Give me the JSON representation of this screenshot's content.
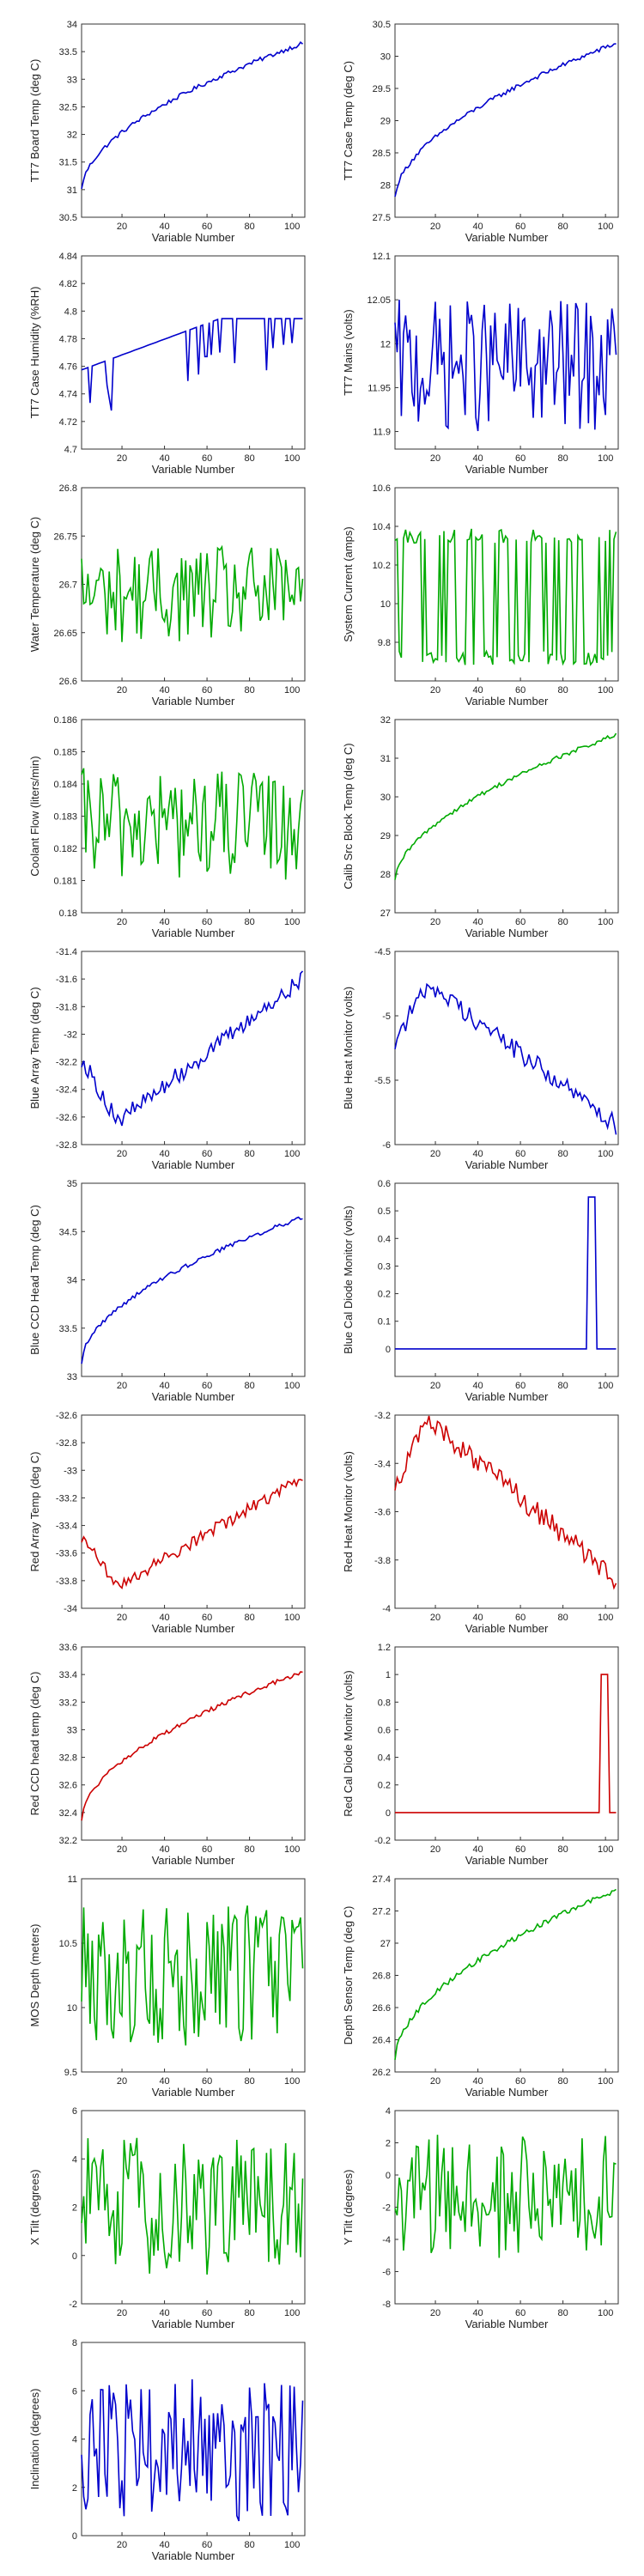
{
  "chart_data": [
    {
      "type": "line",
      "ylabel": "TT7 Board Temp (deg C)",
      "xlabel": "Variable Number",
      "ylim": [
        30.5,
        34
      ],
      "yticks": [
        30.5,
        31,
        31.5,
        32,
        32.5,
        33,
        33.5,
        34
      ],
      "xlim": [
        1,
        106
      ],
      "xticks": [
        20,
        40,
        60,
        80,
        100
      ],
      "color": "#0000cc",
      "shape": "rise",
      "range": [
        31.0,
        33.65
      ]
    },
    {
      "type": "line",
      "ylabel": "TT7 Case Temp (deg C)",
      "xlabel": "Variable Number",
      "ylim": [
        27.5,
        30.5
      ],
      "yticks": [
        27.5,
        28,
        28.5,
        29,
        29.5,
        30,
        30.5
      ],
      "xlim": [
        1,
        106
      ],
      "xticks": [
        20,
        40,
        60,
        80,
        100
      ],
      "color": "#0000cc",
      "shape": "rise",
      "range": [
        27.8,
        30.2
      ]
    },
    {
      "type": "line",
      "ylabel": "TT7 Case Humidity (%RH)",
      "xlabel": "Variable Number",
      "ylim": [
        4.7,
        4.84
      ],
      "yticks": [
        4.7,
        4.72,
        4.74,
        4.76,
        4.78,
        4.8,
        4.82,
        4.84
      ],
      "xlim": [
        1,
        106
      ],
      "xticks": [
        20,
        40,
        60,
        80,
        100
      ],
      "color": "#0000cc",
      "shape": "steps",
      "range": [
        4.745,
        4.8
      ]
    },
    {
      "type": "line",
      "ylabel": "TT7 Mains (volts)",
      "xlabel": "Variable Number",
      "ylim": [
        11.88,
        12.1
      ],
      "yticks": [
        11.9,
        11.95,
        12,
        12.05,
        12.1
      ],
      "xlim": [
        1,
        106
      ],
      "xticks": [
        20,
        40,
        60,
        80,
        100
      ],
      "color": "#0000cc",
      "shape": "noise",
      "range": [
        11.9,
        12.05
      ]
    },
    {
      "type": "line",
      "ylabel": "Water Temperature (deg C)",
      "xlabel": "Variable Number",
      "ylim": [
        26.6,
        26.8
      ],
      "yticks": [
        26.6,
        26.65,
        26.7,
        26.75,
        26.8
      ],
      "xlim": [
        1,
        106
      ],
      "xticks": [
        20,
        40,
        60,
        80,
        100
      ],
      "color": "#00aa00",
      "shape": "noise",
      "range": [
        26.64,
        26.74
      ]
    },
    {
      "type": "line",
      "ylabel": "System Current (amps)",
      "xlabel": "Variable Number",
      "ylim": [
        9.6,
        10.6
      ],
      "yticks": [
        9.8,
        10,
        10.2,
        10.4,
        10.6
      ],
      "xlim": [
        1,
        106
      ],
      "xticks": [
        20,
        40,
        60,
        80,
        100
      ],
      "color": "#00aa00",
      "shape": "square",
      "range": [
        9.72,
        10.35
      ]
    },
    {
      "type": "line",
      "ylabel": "Coolant Flow (liters/min)",
      "xlabel": "Variable Number",
      "ylim": [
        0.18,
        0.186
      ],
      "yticks": [
        0.18,
        0.181,
        0.182,
        0.183,
        0.184,
        0.185,
        0.186
      ],
      "xlim": [
        1,
        106
      ],
      "xticks": [
        20,
        40,
        60,
        80,
        100
      ],
      "color": "#00aa00",
      "shape": "noise",
      "range": [
        0.181,
        0.1845
      ]
    },
    {
      "type": "line",
      "ylabel": "Calib Src Block Temp (deg C)",
      "xlabel": "Variable Number",
      "ylim": [
        27,
        32
      ],
      "yticks": [
        27,
        28,
        29,
        30,
        31,
        32
      ],
      "xlim": [
        1,
        106
      ],
      "xticks": [
        20,
        40,
        60,
        80,
        100
      ],
      "color": "#00aa00",
      "shape": "rise",
      "range": [
        27.8,
        31.6
      ]
    },
    {
      "type": "line",
      "ylabel": "Blue Array Temp (deg C)",
      "xlabel": "Variable Number",
      "ylim": [
        -32.8,
        -31.4
      ],
      "yticks": [
        -32.8,
        -32.6,
        -32.4,
        -32.2,
        -32,
        -31.8,
        -31.6,
        -31.4
      ],
      "xlim": [
        1,
        106
      ],
      "xticks": [
        20,
        40,
        60,
        80,
        100
      ],
      "color": "#0000cc",
      "shape": "dipRise",
      "range": [
        -32.65,
        -31.6
      ]
    },
    {
      "type": "line",
      "ylabel": "Blue Heat Monitor (volts)",
      "xlabel": "Variable Number",
      "ylim": [
        -6,
        -4.5
      ],
      "yticks": [
        -6,
        -5.5,
        -5,
        -4.5
      ],
      "xlim": [
        1,
        106
      ],
      "xticks": [
        20,
        40,
        60,
        80,
        100
      ],
      "color": "#0000cc",
      "shape": "humpFall",
      "range": [
        -5.85,
        -4.75
      ]
    },
    {
      "type": "line",
      "ylabel": "Blue CCD Head Temp (deg C)",
      "xlabel": "Variable Number",
      "ylim": [
        33,
        35
      ],
      "yticks": [
        33,
        33.5,
        34,
        34.5,
        35
      ],
      "xlim": [
        1,
        106
      ],
      "xticks": [
        20,
        40,
        60,
        80,
        100
      ],
      "color": "#0000cc",
      "shape": "rise",
      "range": [
        33.15,
        34.65
      ]
    },
    {
      "type": "line",
      "ylabel": "Blue Cal Diode Monitor (volts)",
      "xlabel": "Variable Number",
      "ylim": [
        -0.1,
        0.6
      ],
      "yticks": [
        0,
        0.1,
        0.2,
        0.3,
        0.4,
        0.5,
        0.6
      ],
      "xlim": [
        1,
        106
      ],
      "xticks": [
        20,
        40,
        60,
        80,
        100
      ],
      "color": "#0000cc",
      "shape": "spike",
      "spikeAt": [
        92,
        95
      ],
      "range": [
        0,
        0.55
      ]
    },
    {
      "type": "line",
      "ylabel": "Red Array Temp (deg C)",
      "xlabel": "Variable Number",
      "ylim": [
        -34,
        -32.6
      ],
      "yticks": [
        -34,
        -33.8,
        -33.6,
        -33.4,
        -33.2,
        -33,
        -32.8,
        -32.6
      ],
      "xlim": [
        1,
        106
      ],
      "xticks": [
        20,
        40,
        60,
        80,
        100
      ],
      "color": "#cc0000",
      "shape": "dipRise",
      "range": [
        -33.85,
        -33.05
      ]
    },
    {
      "type": "line",
      "ylabel": "Red Heat Monitor (volts)",
      "xlabel": "Variable Number",
      "ylim": [
        -4,
        -3.2
      ],
      "yticks": [
        -4,
        -3.8,
        -3.6,
        -3.4,
        -3.2
      ],
      "xlim": [
        1,
        106
      ],
      "xticks": [
        20,
        40,
        60,
        80,
        100
      ],
      "color": "#cc0000",
      "shape": "humpFall",
      "range": [
        -3.88,
        -3.22
      ]
    },
    {
      "type": "line",
      "ylabel": "Red CCD head temp (deg C)",
      "xlabel": "Variable Number",
      "ylim": [
        32.2,
        33.6
      ],
      "yticks": [
        32.2,
        32.4,
        32.6,
        32.8,
        33,
        33.2,
        33.4,
        33.6
      ],
      "xlim": [
        1,
        106
      ],
      "xticks": [
        20,
        40,
        60,
        80,
        100
      ],
      "color": "#cc0000",
      "shape": "rise",
      "range": [
        32.35,
        33.42
      ]
    },
    {
      "type": "line",
      "ylabel": "Red Cal Diode Monitor (volts)",
      "xlabel": "Variable Number",
      "ylim": [
        -0.2,
        1.2
      ],
      "yticks": [
        -0.2,
        0,
        0.2,
        0.4,
        0.6,
        0.8,
        1,
        1.2
      ],
      "xlim": [
        1,
        106
      ],
      "xticks": [
        20,
        40,
        60,
        80,
        100
      ],
      "color": "#cc0000",
      "shape": "spike",
      "spikeAt": [
        98,
        101
      ],
      "range": [
        0,
        1.0
      ]
    },
    {
      "type": "line",
      "ylabel": "MOS Depth  (meters)",
      "xlabel": "Variable Number",
      "ylim": [
        9.5,
        11
      ],
      "yticks": [
        9.5,
        10,
        10.5,
        11
      ],
      "xlim": [
        1,
        106
      ],
      "xticks": [
        20,
        40,
        60,
        80,
        100
      ],
      "color": "#00aa00",
      "shape": "noise",
      "range": [
        9.7,
        10.8
      ]
    },
    {
      "type": "line",
      "ylabel": "Depth Sensor Temp (deg C)",
      "xlabel": "Variable Number",
      "ylim": [
        26.2,
        27.4
      ],
      "yticks": [
        26.2,
        26.4,
        26.6,
        26.8,
        27,
        27.2,
        27.4
      ],
      "xlim": [
        1,
        106
      ],
      "xticks": [
        20,
        40,
        60,
        80,
        100
      ],
      "color": "#00aa00",
      "shape": "rise",
      "range": [
        26.28,
        27.33
      ]
    },
    {
      "type": "line",
      "ylabel": "X Tilt  (degrees)",
      "xlabel": "Variable Number",
      "ylim": [
        -2,
        6
      ],
      "yticks": [
        -2,
        0,
        2,
        4,
        6
      ],
      "xlim": [
        1,
        106
      ],
      "xticks": [
        20,
        40,
        60,
        80,
        100
      ],
      "color": "#00aa00",
      "shape": "noise",
      "range": [
        -1,
        5
      ]
    },
    {
      "type": "line",
      "ylabel": "Y Tilt  (degrees)",
      "xlabel": "Variable Number",
      "ylim": [
        -8,
        4
      ],
      "yticks": [
        -8,
        -6,
        -4,
        -2,
        0,
        2,
        4
      ],
      "xlim": [
        1,
        106
      ],
      "xticks": [
        20,
        40,
        60,
        80,
        100
      ],
      "color": "#00aa00",
      "shape": "noise",
      "range": [
        -5.5,
        2.5
      ]
    },
    {
      "type": "line",
      "ylabel": "Inclination  (degrees)",
      "xlabel": "Variable Number",
      "ylim": [
        0,
        8
      ],
      "yticks": [
        0,
        2,
        4,
        6,
        8
      ],
      "xlim": [
        1,
        106
      ],
      "xticks": [
        20,
        40,
        60,
        80,
        100
      ],
      "color": "#0000cc",
      "shape": "noise",
      "range": [
        0.6,
        6.5
      ]
    }
  ]
}
